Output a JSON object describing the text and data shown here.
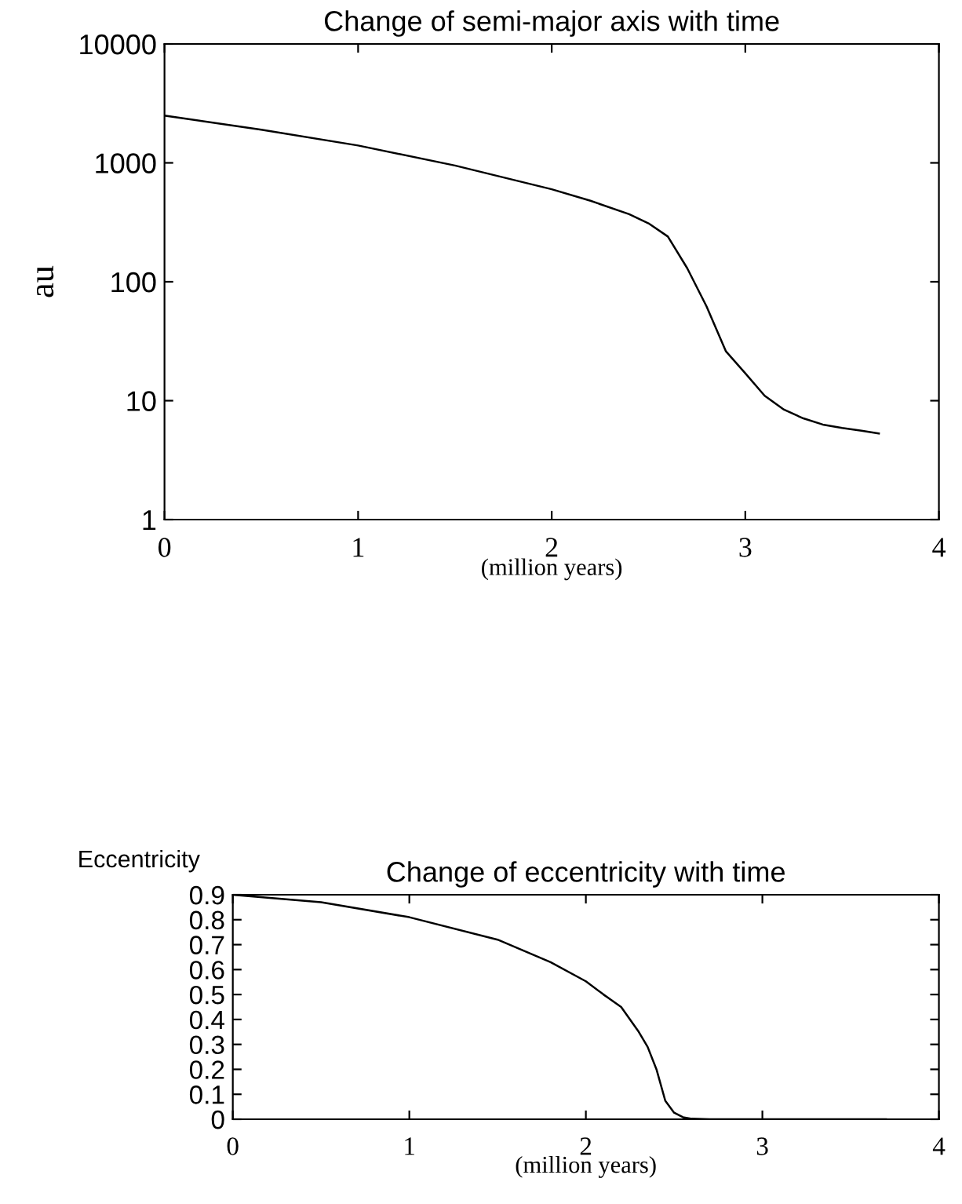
{
  "chart_data": [
    {
      "type": "line",
      "title": "Change of semi-major axis with time",
      "xlabel": "(million years)",
      "ylabel": "au",
      "log": "y",
      "xlim": [
        0,
        4
      ],
      "ylim": [
        1,
        10000
      ],
      "xticks": [
        0,
        1,
        2,
        3,
        4
      ],
      "yticks": [
        1,
        10,
        100,
        1000,
        10000
      ],
      "grid": false,
      "legend": false,
      "x": [
        0,
        0.5,
        1,
        1.5,
        2,
        2.2,
        2.4,
        2.5,
        2.6,
        2.7,
        2.8,
        2.9,
        3.0,
        3.1,
        3.2,
        3.3,
        3.4,
        3.5,
        3.6,
        3.69
      ],
      "series": [
        {
          "color": "#000000",
          "values": [
            2500,
            1900,
            1400,
            950,
            600,
            480,
            370,
            310,
            240,
            130,
            62,
            26,
            17,
            11,
            8.4,
            7.1,
            6.3,
            5.9,
            5.6,
            5.3
          ]
        }
      ]
    },
    {
      "type": "line",
      "title": "Change of eccentricity with time",
      "xlabel": "(million years)",
      "ylabel": "Eccentricity",
      "xlim": [
        0,
        4
      ],
      "ylim": [
        0,
        0.9
      ],
      "xticks": [
        0,
        1,
        2,
        3,
        4
      ],
      "yticks": [
        0,
        0.1,
        0.2,
        0.3,
        0.4,
        0.5,
        0.6,
        0.7,
        0.8,
        0.9
      ],
      "grid": false,
      "legend": false,
      "x": [
        0,
        0.5,
        1,
        1.5,
        1.8,
        2,
        2.1,
        2.2,
        2.3,
        2.35,
        2.4,
        2.45,
        2.5,
        2.55,
        2.6,
        2.7,
        3.0,
        3.5,
        3.7
      ],
      "series": [
        {
          "color": "#000000",
          "values": [
            0.9,
            0.87,
            0.81,
            0.72,
            0.63,
            0.553,
            0.5,
            0.45,
            0.35,
            0.29,
            0.2,
            0.074,
            0.026,
            0.008,
            0.002,
            0,
            0,
            0,
            0
          ]
        }
      ]
    }
  ]
}
